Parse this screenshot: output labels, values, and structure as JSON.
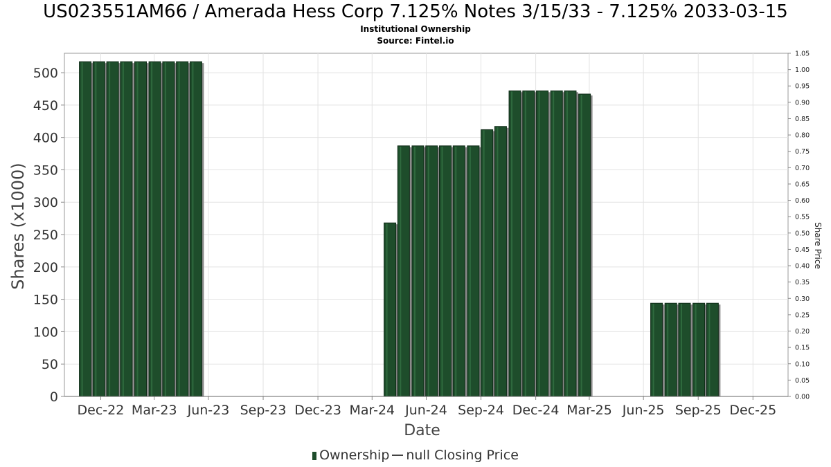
{
  "chart_data": {
    "type": "bar",
    "title": "US023551AM66 / Amerada Hess Corp 7.125% Notes 3/15/33 - 7.125% 2033-03-15",
    "subtitle": "Institutional Ownership",
    "source": "Source: Fintel.io",
    "xlabel": "Date",
    "ylabel": "Shares (x1000)",
    "y2label": "Share Price",
    "ylim": [
      0,
      530
    ],
    "y2lim": [
      0,
      1.05
    ],
    "yticks": [
      "0",
      "50",
      "100",
      "150",
      "200",
      "250",
      "300",
      "350",
      "400",
      "450",
      "500"
    ],
    "y2ticks": [
      "0.00",
      "0.05",
      "0.10",
      "0.15",
      "0.20",
      "0.25",
      "0.30",
      "0.35",
      "0.40",
      "0.45",
      "0.50",
      "0.55",
      "0.60",
      "0.65",
      "0.70",
      "0.75",
      "0.80",
      "0.85",
      "0.90",
      "0.95",
      "1.00",
      "1.05"
    ],
    "xticks": [
      "Dec-22",
      "Mar-23",
      "Jun-23",
      "Sep-23",
      "Dec-23",
      "Mar-24",
      "Jun-24",
      "Sep-24",
      "Dec-24",
      "Mar-25",
      "Jun-25",
      "Sep-25",
      "Dec-25"
    ],
    "xtick_dates": [
      "2022-12-31",
      "2023-03-31",
      "2023-06-30",
      "2023-09-30",
      "2023-12-31",
      "2024-03-31",
      "2024-06-30",
      "2024-09-30",
      "2024-12-31",
      "2025-03-31",
      "2025-06-30",
      "2025-09-30",
      "2025-12-31"
    ],
    "x_range": [
      "2022-10-31",
      "2026-02-28"
    ],
    "grid": true,
    "legend_position": "bottom",
    "series": [
      {
        "name": "Ownership",
        "color": "#1e4d2b",
        "points": [
          {
            "date": "2022-12-05",
            "value": 517
          },
          {
            "date": "2022-12-28",
            "value": 517
          },
          {
            "date": "2023-01-20",
            "value": 517
          },
          {
            "date": "2023-02-12",
            "value": 517
          },
          {
            "date": "2023-03-08",
            "value": 517
          },
          {
            "date": "2023-04-01",
            "value": 517
          },
          {
            "date": "2023-04-24",
            "value": 517
          },
          {
            "date": "2023-05-17",
            "value": 517
          },
          {
            "date": "2023-06-09",
            "value": 517
          },
          {
            "date": "2024-04-30",
            "value": 268
          },
          {
            "date": "2024-05-23",
            "value": 387
          },
          {
            "date": "2024-06-16",
            "value": 387
          },
          {
            "date": "2024-07-09",
            "value": 387
          },
          {
            "date": "2024-08-01",
            "value": 387
          },
          {
            "date": "2024-08-24",
            "value": 387
          },
          {
            "date": "2024-09-17",
            "value": 387
          },
          {
            "date": "2024-10-10",
            "value": 412
          },
          {
            "date": "2024-11-02",
            "value": 417
          },
          {
            "date": "2024-11-26",
            "value": 472
          },
          {
            "date": "2024-12-19",
            "value": 472
          },
          {
            "date": "2025-01-11",
            "value": 472
          },
          {
            "date": "2025-02-04",
            "value": 472
          },
          {
            "date": "2025-02-27",
            "value": 472
          },
          {
            "date": "2025-03-23",
            "value": 467
          },
          {
            "date": "2025-07-22",
            "value": 144
          },
          {
            "date": "2025-08-15",
            "value": 144
          },
          {
            "date": "2025-09-07",
            "value": 144
          },
          {
            "date": "2025-10-01",
            "value": 144
          },
          {
            "date": "2025-10-24",
            "value": 144
          }
        ]
      },
      {
        "name": "null Closing Price",
        "color": "#444444",
        "points": []
      }
    ]
  }
}
